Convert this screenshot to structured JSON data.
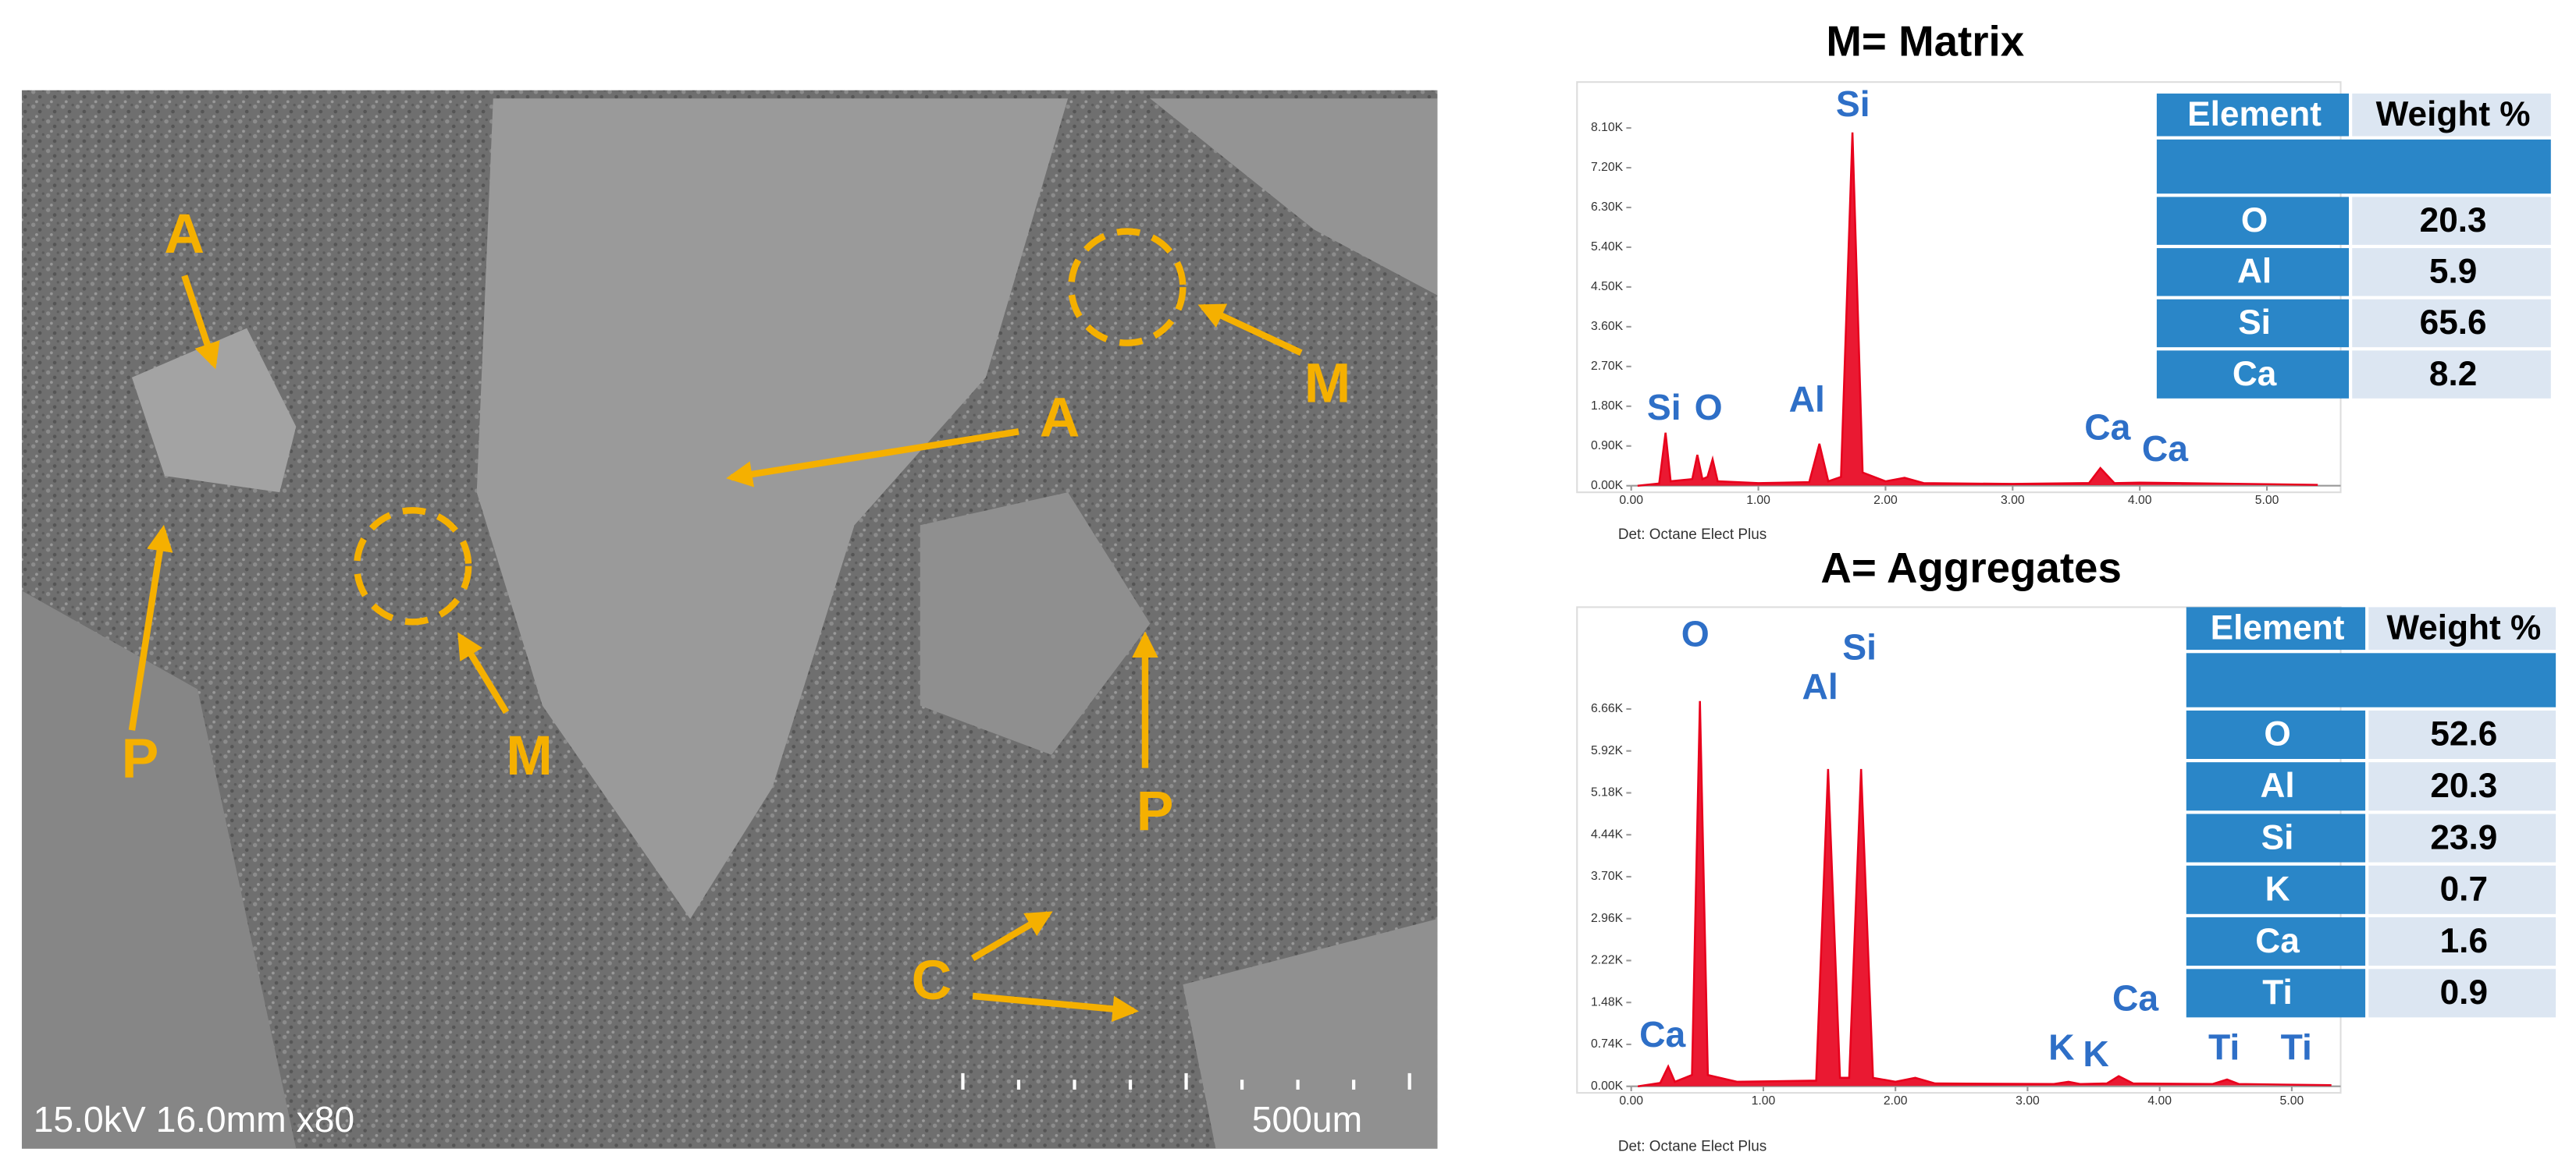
{
  "micrograph": {
    "info": "15.0kV 16.0mm x80",
    "scale": "500um",
    "labels": [
      "A",
      "A",
      "M",
      "M",
      "P",
      "P",
      "C"
    ]
  },
  "chart_data": [
    {
      "type": "line",
      "title": "M= Matrix",
      "detector": "Det: Octane Elect Plus",
      "color": "#e8001c",
      "x": [
        0.05,
        0.22,
        0.27,
        0.31,
        0.48,
        0.52,
        0.56,
        0.6,
        0.64,
        0.68,
        1.0,
        1.4,
        1.48,
        1.55,
        1.65,
        1.74,
        1.82,
        2.0,
        2.15,
        2.3,
        3.0,
        3.6,
        3.69,
        3.8,
        4.0,
        5.4
      ],
      "values": [
        0,
        50,
        1200,
        100,
        150,
        700,
        150,
        200,
        600,
        100,
        60,
        80,
        950,
        100,
        200,
        8000,
        300,
        100,
        180,
        60,
        40,
        60,
        400,
        60,
        70,
        20
      ],
      "xlim": [
        0,
        5.58
      ],
      "ylim": [
        0,
        9140
      ],
      "xticks": [
        {
          "value": 0,
          "label": "0.00"
        },
        {
          "value": 1,
          "label": "1.00"
        },
        {
          "value": 2,
          "label": "2.00"
        },
        {
          "value": 3,
          "label": "3.00"
        },
        {
          "value": 4,
          "label": "4.00"
        },
        {
          "value": 5,
          "label": "5.00"
        }
      ],
      "yticks": [
        {
          "value": 0,
          "label": "0.00K"
        },
        {
          "value": 900,
          "label": "0.90K"
        },
        {
          "value": 1800,
          "label": "1.80K"
        },
        {
          "value": 2700,
          "label": "2.70K"
        },
        {
          "value": 3600,
          "label": "3.60K"
        },
        {
          "value": 4500,
          "label": "4.50K"
        },
        {
          "value": 5400,
          "label": "5.40K"
        },
        {
          "value": 6300,
          "label": "6.30K"
        },
        {
          "value": 7200,
          "label": "7.20K"
        },
        {
          "value": 8100,
          "label": "8.10K"
        }
      ],
      "annotations": [
        "Si",
        "O",
        "Al",
        "Si",
        "Ca",
        "Ca"
      ],
      "table": {
        "header": [
          "Element",
          "Weight %"
        ],
        "rows": [
          [
            "O",
            "20.3"
          ],
          [
            "Al",
            "5.9"
          ],
          [
            "Si",
            "65.6"
          ],
          [
            "Ca",
            "8.2"
          ]
        ]
      }
    },
    {
      "type": "line",
      "title": "A= Aggregates",
      "detector": "Det: Octane Elect Plus",
      "color": "#e8001c",
      "x": [
        0.05,
        0.22,
        0.28,
        0.33,
        0.46,
        0.52,
        0.58,
        0.8,
        1.4,
        1.49,
        1.58,
        1.65,
        1.74,
        1.83,
        2.0,
        2.15,
        2.3,
        3.2,
        3.31,
        3.4,
        3.6,
        3.69,
        3.8,
        4.4,
        4.51,
        4.6,
        5.3
      ],
      "values": [
        0,
        60,
        350,
        80,
        200,
        6800,
        200,
        80,
        100,
        5600,
        150,
        150,
        5600,
        150,
        80,
        150,
        50,
        40,
        80,
        40,
        50,
        180,
        50,
        40,
        120,
        40,
        20
      ],
      "xlim": [
        0,
        5.37
      ],
      "ylim": [
        0,
        8400
      ],
      "xticks": [
        {
          "value": 0,
          "label": "0.00"
        },
        {
          "value": 1,
          "label": "1.00"
        },
        {
          "value": 2,
          "label": "2.00"
        },
        {
          "value": 3,
          "label": "3.00"
        },
        {
          "value": 4,
          "label": "4.00"
        },
        {
          "value": 5,
          "label": "5.00"
        }
      ],
      "yticks": [
        {
          "value": 0,
          "label": "0.00K"
        },
        {
          "value": 740,
          "label": "0.74K"
        },
        {
          "value": 1480,
          "label": "1.48K"
        },
        {
          "value": 2220,
          "label": "2.22K"
        },
        {
          "value": 2960,
          "label": "2.96K"
        },
        {
          "value": 3700,
          "label": "3.70K"
        },
        {
          "value": 4440,
          "label": "4.44K"
        },
        {
          "value": 5180,
          "label": "5.18K"
        },
        {
          "value": 5920,
          "label": "5.92K"
        },
        {
          "value": 6660,
          "label": "6.66K"
        }
      ],
      "annotations": [
        "Ca",
        "O",
        "Al",
        "Si",
        "K",
        "K",
        "Ca",
        "Ti",
        "Ti"
      ],
      "table": {
        "header": [
          "Element",
          "Weight %"
        ],
        "rows": [
          [
            "O",
            "52.6"
          ],
          [
            "Al",
            "20.3"
          ],
          [
            "Si",
            "23.9"
          ],
          [
            "K",
            "0.7"
          ],
          [
            "Ca",
            "1.6"
          ],
          [
            "Ti",
            "0.9"
          ]
        ]
      }
    }
  ]
}
